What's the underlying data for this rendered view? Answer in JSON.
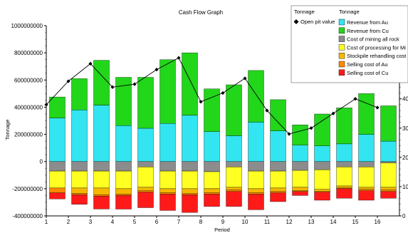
{
  "chart_data": {
    "type": "bar",
    "stacked": true,
    "title": "Cash Flow Graph",
    "xlabel": "Period",
    "ylabel": "Tonnage",
    "y2label": "",
    "categories": [
      "1",
      "2",
      "3",
      "4",
      "5",
      "6",
      "7",
      "8",
      "9",
      "10",
      "11",
      "12",
      "13",
      "14",
      "15",
      "16"
    ],
    "ylim": [
      -400000000,
      1000000000
    ],
    "yticks": [
      -400000000,
      -200000000,
      0,
      200000000,
      400000000,
      600000000,
      800000000,
      1000000000
    ],
    "ytick_labels": [
      "-400000000",
      "-200000000",
      "0",
      "200000000",
      "400000000",
      "600000000",
      "800000000",
      "1000000000"
    ],
    "y2lim": [
      0,
      65
    ],
    "y2ticks": [
      0,
      10,
      20,
      30,
      40,
      50,
      60
    ],
    "y2tick_labels": [
      "0",
      "10",
      "20",
      "30",
      "40",
      "50",
      "60"
    ],
    "grid": false,
    "legend_placement": "top-right",
    "legend": {
      "left_header": "Tonnage",
      "right_header": "Tonnage",
      "line_entry": "Open pit value"
    },
    "series": [
      {
        "name": "Revenue from Au",
        "color": "#33e5f0",
        "sign": "positive",
        "values": [
          320000000,
          380000000,
          415000000,
          265000000,
          245000000,
          280000000,
          340000000,
          220000000,
          190000000,
          290000000,
          225000000,
          120000000,
          115000000,
          130000000,
          200000000,
          150000000
        ]
      },
      {
        "name": "Revenue from Cu",
        "color": "#22d61a",
        "sign": "positive",
        "values": [
          155000000,
          230000000,
          330000000,
          355000000,
          375000000,
          470000000,
          460000000,
          315000000,
          375000000,
          380000000,
          230000000,
          150000000,
          235000000,
          265000000,
          300000000,
          260000000
        ]
      },
      {
        "name": "Cost of mining all rock",
        "color": "#8c8c8c",
        "sign": "negative",
        "values": [
          -70000000,
          -70000000,
          -70000000,
          -70000000,
          -40000000,
          -70000000,
          -70000000,
          -75000000,
          -40000000,
          -70000000,
          -70000000,
          -65000000,
          -60000000,
          -40000000,
          -40000000,
          -10000000
        ]
      },
      {
        "name": "Cost of processing for Mi",
        "color": "#ffff22",
        "sign": "negative",
        "values": [
          -125000000,
          -125000000,
          -125000000,
          -130000000,
          -150000000,
          -130000000,
          -130000000,
          -125000000,
          -150000000,
          -130000000,
          -125000000,
          -125000000,
          -145000000,
          -140000000,
          -150000000,
          -180000000
        ]
      },
      {
        "name": "Stockpile rehandling cost",
        "color": "#f5b800",
        "sign": "negative",
        "values": [
          0,
          -40000000,
          -50000000,
          -40000000,
          -25000000,
          -30000000,
          -35000000,
          -30000000,
          -20000000,
          -30000000,
          -25000000,
          -25000000,
          -15000000,
          -15000000,
          -15000000,
          -20000000
        ]
      },
      {
        "name": "Selling cost of Au",
        "color": "#ff8a00",
        "sign": "negative",
        "values": [
          -35000000,
          -10000000,
          -10000000,
          -10000000,
          -10000000,
          -10000000,
          -10000000,
          -10000000,
          -10000000,
          -10000000,
          -10000000,
          -5000000,
          -5000000,
          -5000000,
          -10000000,
          -10000000
        ]
      },
      {
        "name": "Selling cost of Cu",
        "color": "#ff1a1a",
        "sign": "negative",
        "values": [
          -45000000,
          -70000000,
          -95000000,
          -100000000,
          -115000000,
          -120000000,
          -130000000,
          -90000000,
          -110000000,
          -115000000,
          -65000000,
          -30000000,
          -60000000,
          -70000000,
          -70000000,
          -50000000
        ]
      }
    ],
    "line_series": {
      "name": "Open pit value",
      "axis": "right",
      "color": "#000000",
      "marker": "diamond",
      "values": [
        38,
        46,
        52,
        44,
        45,
        50,
        54,
        39,
        42,
        47,
        36,
        28,
        30,
        35,
        40,
        37
      ]
    }
  }
}
